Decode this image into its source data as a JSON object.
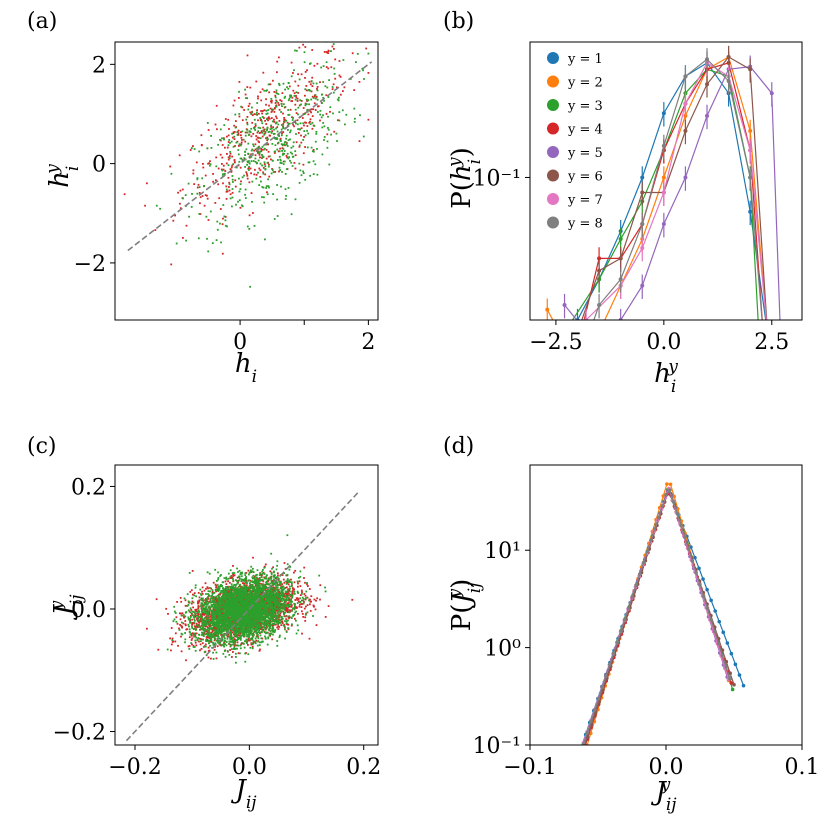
{
  "chart_data": [
    {
      "panel": "(a)",
      "type": "scatter",
      "xlabel": "h_i",
      "ylabel": "h_i^y",
      "xlim": [
        -1.95,
        2.15
      ],
      "ylim": [
        -3.15,
        2.45
      ],
      "xticks": [
        0,
        1,
        2
      ],
      "xtick_labels": [
        "0",
        "",
        "2"
      ],
      "yticks": [
        2,
        0,
        -2
      ],
      "ytick_labels": [
        "2",
        "0",
        "−2"
      ],
      "identity_line": [
        [
          -1.75,
          -1.75
        ],
        [
          2.05,
          2.05
        ]
      ],
      "series": [
        {
          "color": "#d62728",
          "n": 480,
          "cloud": {
            "x_mean": 0.4,
            "x_sd": 0.65,
            "slope": 0.85,
            "intercept": 0.28,
            "resid_sd": 0.55,
            "x_min": -1.8,
            "x_max": 2.0
          }
        },
        {
          "color": "#2ca02c",
          "n": 520,
          "cloud": {
            "x_mean": 0.5,
            "x_sd": 0.6,
            "slope": 0.85,
            "intercept": 0.0,
            "resid_sd": 0.65,
            "x_min": -1.8,
            "x_max": 2.0
          }
        }
      ]
    },
    {
      "panel": "(b)",
      "type": "line",
      "xlabel": "h_i^y",
      "ylabel": "P(h_i^y)",
      "yscale": "log",
      "xlim": [
        -3.1,
        3.2
      ],
      "ylim": [
        0.012,
        0.75
      ],
      "xticks": [
        -2.5,
        0.0,
        2.5
      ],
      "xtick_labels": [
        "−2.5",
        "0.0",
        "2.5"
      ],
      "yticks": [
        0.1
      ],
      "ytick_labels": [
        "10⁻¹"
      ],
      "legend_position": "upper-left",
      "series": [
        {
          "name": "y = 1",
          "color": "#1f77b4",
          "x": [
            -2.5,
            -2.0,
            -1.5,
            -1.0,
            -0.5,
            0.0,
            0.5,
            1.0,
            1.5,
            2.0,
            2.4
          ],
          "y": [
            0.005,
            0.012,
            0.022,
            0.045,
            0.1,
            0.26,
            0.45,
            0.55,
            0.35,
            0.06,
            0.01
          ]
        },
        {
          "name": "y = 2",
          "color": "#ff7f0e",
          "x": [
            -2.7,
            -2.0,
            -1.5,
            -1.0,
            -0.5,
            0.0,
            0.5,
            1.0,
            1.5,
            2.0,
            2.4
          ],
          "y": [
            0.014,
            0.006,
            0.01,
            0.02,
            0.04,
            0.1,
            0.25,
            0.5,
            0.6,
            0.2,
            0.01
          ]
        },
        {
          "name": "y = 3",
          "color": "#2ca02c",
          "x": [
            -2.3,
            -1.5,
            -1.0,
            -0.5,
            0.0,
            0.5,
            1.0,
            1.5,
            2.0,
            2.2
          ],
          "y": [
            0.01,
            0.022,
            0.04,
            0.07,
            0.15,
            0.35,
            0.5,
            0.45,
            0.1,
            0.01
          ]
        },
        {
          "name": "y = 4",
          "color": "#d62728",
          "x": [
            -2.0,
            -1.5,
            -1.0,
            -0.5,
            0.0,
            0.5,
            1.0,
            1.5,
            2.0,
            2.3
          ],
          "y": [
            0.008,
            0.03,
            0.03,
            0.05,
            0.15,
            0.3,
            0.5,
            0.55,
            0.15,
            0.01
          ]
        },
        {
          "name": "y = 5",
          "color": "#9467bd",
          "x": [
            -2.3,
            -1.5,
            -1.0,
            -0.5,
            0.0,
            0.5,
            1.0,
            1.5,
            2.0,
            2.5,
            2.7
          ],
          "y": [
            0.015,
            0.008,
            0.012,
            0.02,
            0.05,
            0.1,
            0.25,
            0.5,
            0.52,
            0.35,
            0.01
          ]
        },
        {
          "name": "y = 6",
          "color": "#8c564b",
          "x": [
            -2.0,
            -1.5,
            -1.0,
            -0.5,
            0.0,
            0.5,
            1.0,
            1.5,
            2.0,
            2.4
          ],
          "y": [
            0.01,
            0.025,
            0.03,
            0.08,
            0.08,
            0.2,
            0.4,
            0.6,
            0.5,
            0.01
          ]
        },
        {
          "name": "y = 7",
          "color": "#e377c2",
          "x": [
            -1.8,
            -1.0,
            -0.5,
            0.0,
            0.5,
            1.0,
            1.5,
            2.0,
            2.4
          ],
          "y": [
            0.012,
            0.02,
            0.035,
            0.08,
            0.3,
            0.55,
            0.45,
            0.15,
            0.01
          ]
        },
        {
          "name": "y = 8",
          "color": "#7f7f7f",
          "x": [
            -2.0,
            -1.5,
            -1.0,
            -0.5,
            0.0,
            0.5,
            1.0,
            1.5,
            2.0,
            2.3
          ],
          "y": [
            0.006,
            0.015,
            0.022,
            0.05,
            0.16,
            0.45,
            0.58,
            0.42,
            0.1,
            0.01
          ]
        }
      ]
    },
    {
      "panel": "(c)",
      "type": "scatter",
      "xlabel": "J_ij",
      "ylabel": "J_ij^y",
      "xlim": [
        -0.235,
        0.225
      ],
      "ylim": [
        -0.222,
        0.235
      ],
      "xticks": [
        -0.2,
        0.0,
        0.2
      ],
      "xtick_labels": [
        "−0.2",
        "0.0",
        "0.2"
      ],
      "yticks": [
        0.2,
        0.0,
        -0.2
      ],
      "ytick_labels": [
        "0.2",
        "0.0",
        "−0.2"
      ],
      "identity_line": [
        [
          -0.215,
          -0.215
        ],
        [
          0.19,
          0.19
        ]
      ],
      "series": [
        {
          "color": "#d62728",
          "n": 2600,
          "cloud": {
            "x_mean": -0.01,
            "x_sd": 0.045,
            "slope": 0.2,
            "intercept": 0.0,
            "resid_sd": 0.023,
            "x_min": -0.2,
            "x_max": 0.18
          }
        },
        {
          "color": "#2ca02c",
          "n": 3400,
          "cloud": {
            "x_mean": -0.01,
            "x_sd": 0.04,
            "slope": 0.2,
            "intercept": 0.0,
            "resid_sd": 0.025,
            "x_min": -0.2,
            "x_max": 0.18
          }
        }
      ]
    },
    {
      "panel": "(d)",
      "type": "line",
      "xlabel": "J_ij^y",
      "ylabel": "P(J_ij^y)",
      "yscale": "log",
      "xlim": [
        -0.1,
        0.1
      ],
      "ylim": [
        0.1,
        75
      ],
      "xticks": [
        -0.1,
        0.0,
        0.1
      ],
      "xtick_labels": [
        "−0.1",
        "0.0",
        "0.1"
      ],
      "yticks": [
        10,
        1,
        0.1
      ],
      "ytick_labels": [
        "10¹",
        "10⁰",
        "10⁻¹"
      ],
      "series": [
        {
          "color": "#1f77b4",
          "peak": 43,
          "center": 0.002,
          "left_decay": 0.0105,
          "right_decay": 0.0118,
          "x_range": [
            -0.068,
            0.057
          ]
        },
        {
          "color": "#ff7f0e",
          "peak": 55,
          "center": 0.002,
          "left_decay": 0.0095,
          "right_decay": 0.0092,
          "x_range": [
            -0.066,
            0.046
          ]
        },
        {
          "color": "#2ca02c",
          "peak": 45,
          "center": 0.002,
          "left_decay": 0.0102,
          "right_decay": 0.0098,
          "x_range": [
            -0.069,
            0.049
          ]
        },
        {
          "color": "#d62728",
          "peak": 43,
          "center": 0.002,
          "left_decay": 0.0101,
          "right_decay": 0.01,
          "x_range": [
            -0.069,
            0.048
          ]
        },
        {
          "color": "#9467bd",
          "peak": 44,
          "center": 0.002,
          "left_decay": 0.0103,
          "right_decay": 0.0096,
          "x_range": [
            -0.07,
            0.045
          ]
        },
        {
          "color": "#8c564b",
          "peak": 42,
          "center": 0.002,
          "left_decay": 0.0102,
          "right_decay": 0.0104,
          "x_range": [
            -0.069,
            0.05
          ]
        },
        {
          "color": "#e377c2",
          "peak": 44,
          "center": 0.002,
          "left_decay": 0.0104,
          "right_decay": 0.0097,
          "x_range": [
            -0.069,
            0.046
          ]
        },
        {
          "color": "#7f7f7f",
          "peak": 45,
          "center": 0.002,
          "left_decay": 0.0103,
          "right_decay": 0.0099,
          "x_range": [
            -0.069,
            0.047
          ]
        }
      ]
    }
  ]
}
